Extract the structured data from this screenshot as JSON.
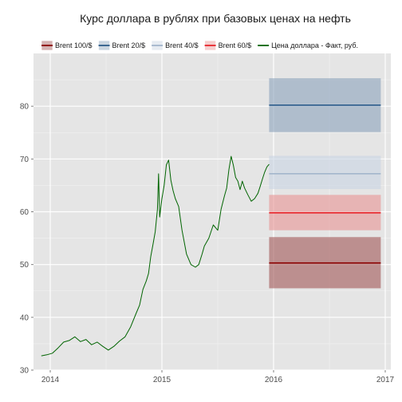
{
  "chart_data": {
    "type": "line",
    "title": "Курс доллара в рублях при базовых ценах на нефть",
    "xlabel": "",
    "ylabel": "",
    "xlim": [
      2013.85,
      2017.05
    ],
    "ylim": [
      30,
      90
    ],
    "x_ticks": [
      2014,
      2015,
      2016,
      2017
    ],
    "x_tick_labels": [
      "2014",
      "2015",
      "2016",
      "2017"
    ],
    "y_ticks": [
      30,
      40,
      50,
      60,
      70,
      80
    ],
    "y_tick_labels": [
      "30",
      "40",
      "50",
      "60",
      "70",
      "80"
    ],
    "grid": true,
    "legend_position": "top",
    "forecast_start": 2015.96,
    "forecast_end": 2016.96,
    "scenarios": [
      {
        "name": "Brent 100/$",
        "color": "#8b0000",
        "band_color": "#a05555",
        "value": 50.3,
        "low": 45.5,
        "high": 55.2
      },
      {
        "name": "Brent 20/$",
        "color": "#2c5c8a",
        "band_color": "#8aa2bb",
        "value": 80.2,
        "low": 75.1,
        "high": 85.3
      },
      {
        "name": "Brent 40/$",
        "color": "#a3b6cc",
        "band_color": "#c8d3e2",
        "value": 67.2,
        "low": 64.3,
        "high": 70.6
      },
      {
        "name": "Brent 60/$",
        "color": "#e8262c",
        "band_color": "#e89292",
        "value": 59.8,
        "low": 56.5,
        "high": 63.2
      }
    ],
    "series": [
      {
        "name": "Цена доллара - Факт, руб.",
        "color": "#006400",
        "x": [
          2013.92,
          2013.97,
          2014.02,
          2014.07,
          2014.12,
          2014.17,
          2014.22,
          2014.27,
          2014.32,
          2014.37,
          2014.42,
          2014.47,
          2014.52,
          2014.57,
          2014.62,
          2014.67,
          2014.72,
          2014.77,
          2014.8,
          2014.83,
          2014.86,
          2014.88,
          2014.9,
          2014.92,
          2014.94,
          2014.96,
          2014.97,
          2014.98,
          2015.0,
          2015.02,
          2015.04,
          2015.06,
          2015.08,
          2015.1,
          2015.12,
          2015.15,
          2015.18,
          2015.22,
          2015.26,
          2015.3,
          2015.33,
          2015.36,
          2015.38,
          2015.42,
          2015.46,
          2015.5,
          2015.53,
          2015.56,
          2015.58,
          2015.6,
          2015.62,
          2015.64,
          2015.66,
          2015.68,
          2015.7,
          2015.72,
          2015.74,
          2015.77,
          2015.8,
          2015.83,
          2015.86,
          2015.88,
          2015.9,
          2015.92,
          2015.94,
          2015.96
        ],
        "y": [
          32.7,
          32.9,
          33.2,
          34.2,
          35.3,
          35.6,
          36.3,
          35.4,
          35.8,
          34.8,
          35.3,
          34.5,
          33.8,
          34.5,
          35.5,
          36.3,
          38.2,
          40.8,
          42.3,
          45.3,
          46.9,
          48.3,
          51.5,
          53.8,
          56.2,
          60.5,
          67.2,
          59.0,
          62.5,
          65.0,
          68.9,
          69.8,
          66.0,
          64.0,
          62.5,
          61.0,
          56.5,
          52.0,
          50.0,
          49.5,
          50.0,
          52.0,
          53.5,
          55.0,
          57.5,
          56.5,
          60.5,
          63.0,
          64.5,
          68.0,
          70.5,
          68.8,
          66.5,
          65.8,
          64.2,
          65.8,
          64.5,
          63.2,
          62.0,
          62.5,
          63.5,
          64.8,
          66.2,
          67.5,
          68.5,
          69.0
        ]
      }
    ]
  }
}
